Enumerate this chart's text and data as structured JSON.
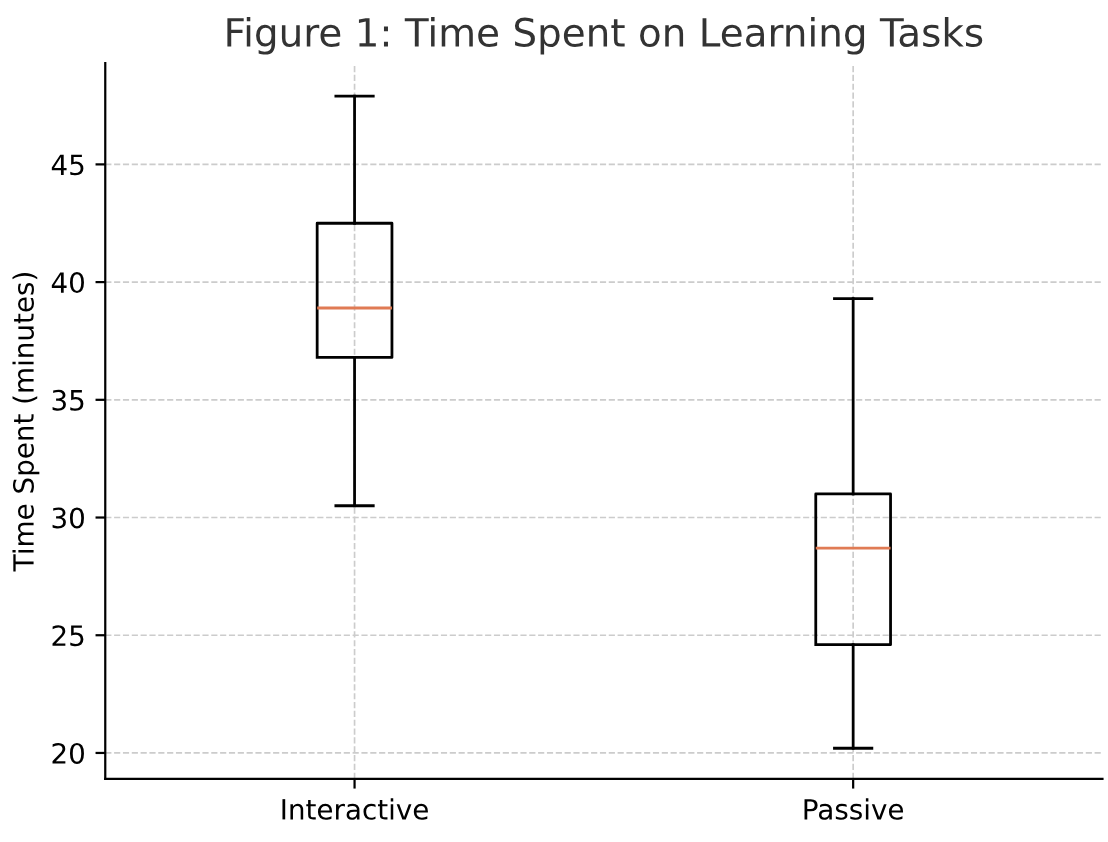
{
  "chart_data": {
    "type": "box",
    "title": "Figure 1: Time Spent on Learning Tasks",
    "ylabel": "Time Spent (minutes)",
    "categories": [
      "Interactive",
      "Passive"
    ],
    "boxes": [
      {
        "low": 30.5,
        "q1": 36.8,
        "median": 38.9,
        "q3": 42.5,
        "high": 47.9
      },
      {
        "low": 20.2,
        "q1": 24.6,
        "median": 28.7,
        "q3": 31.0,
        "high": 39.3
      }
    ],
    "ylim": [
      18.9,
      49.3
    ],
    "yticks": [
      20,
      25,
      30,
      35,
      40,
      45
    ],
    "grid": true
  }
}
